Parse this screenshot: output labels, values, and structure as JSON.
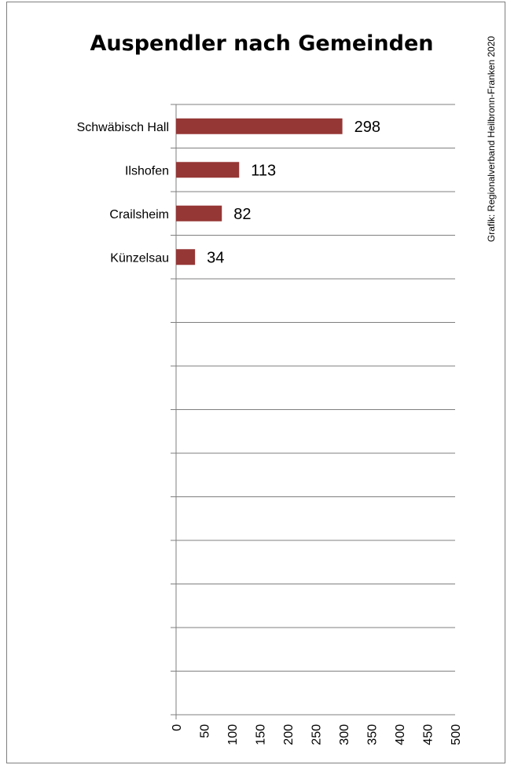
{
  "chart_data": {
    "type": "bar",
    "orientation": "horizontal",
    "title": "Auspendler nach Gemeinden",
    "source": "Grafik: Regionalverband Heilbronn-Franken 2020",
    "categories": [
      "Schwäbisch Hall",
      "Ilshofen",
      "Crailsheim",
      "Künzelsau"
    ],
    "values": [
      298,
      113,
      82,
      34
    ],
    "value_labels": [
      "298",
      "113",
      "82",
      "34"
    ],
    "xlim": [
      0,
      500
    ],
    "xticks": [
      "0",
      "50",
      "100",
      "150",
      "200",
      "250",
      "300",
      "350",
      "400",
      "450",
      "500"
    ],
    "xtick_values": [
      0,
      50,
      100,
      150,
      200,
      250,
      300,
      350,
      400,
      450,
      500
    ],
    "category_slots": 14,
    "grid": true,
    "bar_color": "#953735",
    "grid_color": "#7f7f7f",
    "xlabel": "",
    "ylabel": ""
  }
}
